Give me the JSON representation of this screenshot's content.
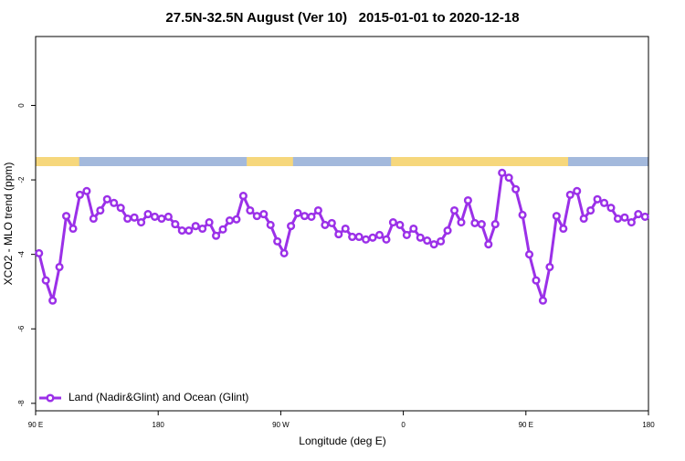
{
  "chart_data": {
    "type": "line",
    "title": "27.5N-32.5N August (Ver 10)   2015-01-01 to 2020-12-18",
    "x_label": "Longitude (deg E)",
    "y_label": "XCO2 - MLO trend (ppm)",
    "x": [
      92.5,
      97.5,
      102.5,
      107.5,
      112.5,
      117.5,
      122.5,
      127.5,
      132.5,
      137.5,
      142.5,
      147.5,
      152.5,
      157.5,
      162.5,
      167.5,
      172.5,
      177.5,
      182.5,
      187.5,
      192.5,
      197.5,
      202.5,
      207.5,
      212.5,
      217.5,
      222.5,
      227.5,
      232.5,
      237.5,
      242.5,
      247.5,
      252.5,
      257.5,
      262.5,
      267.5,
      272.5,
      277.5,
      282.5,
      287.5,
      292.5,
      297.5,
      302.5,
      307.5,
      312.5,
      317.5,
      322.5,
      327.5,
      332.5,
      337.5,
      342.5,
      347.5,
      352.5,
      357.5,
      362.5,
      367.5,
      372.5,
      377.5,
      382.5,
      387.5,
      392.5,
      397.5,
      402.5,
      407.5,
      412.5,
      417.5,
      422.5,
      427.5,
      432.5,
      437.5,
      442.5,
      447.5,
      452.5,
      457.5,
      462.5,
      467.5,
      472.5,
      477.5,
      482.5,
      487.5,
      492.5,
      497.5,
      502.5,
      507.5,
      512.5,
      517.5,
      522.5,
      527.5,
      532.5,
      537.5
    ],
    "series": [
      {
        "name": "Land (Nadir&Glint) and Ocean (Glint)",
        "color": "#9b30e8",
        "values": [
          -3.97,
          -4.7,
          -5.24,
          -4.34,
          -2.97,
          -3.31,
          -2.4,
          -2.3,
          -3.04,
          -2.82,
          -2.52,
          -2.62,
          -2.75,
          -3.04,
          -3.01,
          -3.14,
          -2.92,
          -2.99,
          -3.04,
          -2.99,
          -3.19,
          -3.36,
          -3.36,
          -3.24,
          -3.31,
          -3.14,
          -3.5,
          -3.33,
          -3.09,
          -3.06,
          -2.43,
          -2.82,
          -2.97,
          -2.92,
          -3.21,
          -3.65,
          -3.97,
          -3.24,
          -2.89,
          -2.97,
          -2.99,
          -2.82,
          -3.21,
          -3.16,
          -3.46,
          -3.31,
          -3.53,
          -3.53,
          -3.6,
          -3.55,
          -3.48,
          -3.6,
          -3.14,
          -3.21,
          -3.48,
          -3.31,
          -3.55,
          -3.63,
          -3.73,
          -3.65,
          -3.36,
          -2.82,
          -3.14,
          -2.55,
          -3.16,
          -3.19,
          -3.73,
          -3.19,
          -1.81,
          -1.94,
          -2.25,
          -2.94,
          -4.0,
          -4.7,
          -5.24,
          -4.34,
          -2.97,
          -3.31,
          -2.4,
          -2.3,
          -3.04,
          -2.82,
          -2.52,
          -2.62,
          -2.75,
          -3.04,
          -3.01,
          -3.14,
          -2.92,
          -2.99
        ]
      }
    ],
    "xlim": [
      90,
      540
    ],
    "xticks": [
      {
        "value": 90,
        "label": "90 E"
      },
      180,
      {
        "value": 270,
        "label": "90 W"
      },
      {
        "value": 360,
        "label": "0"
      },
      {
        "value": 450,
        "label": "90 E"
      },
      {
        "value": 540,
        "label": "180"
      }
    ],
    "ylim": [
      -8.2,
      1.85
    ],
    "yticks": [
      0,
      -2,
      -4,
      -6,
      -8
    ],
    "legend": "bottom-left",
    "land_spans": [
      [
        90,
        122
      ],
      [
        245,
        279
      ],
      [
        351,
        481
      ]
    ],
    "land_color": "#f6d77c",
    "ocean_color": "#a3b9dc"
  }
}
